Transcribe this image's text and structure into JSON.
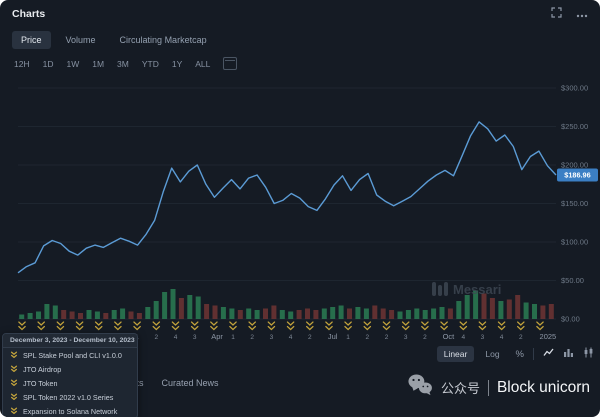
{
  "header": {
    "title": "Charts"
  },
  "toolbar": {
    "tabs": [
      {
        "label": "Price",
        "active": true
      },
      {
        "label": "Volume",
        "active": false
      },
      {
        "label": "Circulating Marketcap",
        "active": false
      }
    ],
    "ranges": [
      {
        "label": "12H"
      },
      {
        "label": "1D"
      },
      {
        "label": "1W"
      },
      {
        "label": "1M"
      },
      {
        "label": "3M"
      },
      {
        "label": "YTD"
      },
      {
        "label": "1Y"
      },
      {
        "label": "ALL"
      }
    ]
  },
  "chart_data": {
    "type": "line",
    "title": "Price",
    "series": [
      {
        "name": "Price",
        "values": [
          60,
          68,
          73,
          95,
          102,
          98,
          88,
          83,
          92,
          96,
          93,
          99,
          105,
          101,
          96,
          110,
          128,
          165,
          196,
          178,
          192,
          200,
          175,
          158,
          170,
          181,
          169,
          183,
          187,
          171,
          150,
          154,
          163,
          157,
          146,
          141,
          156,
          174,
          186,
          167,
          181,
          189,
          161,
          153,
          147,
          153,
          159,
          169,
          179,
          187,
          193,
          186,
          212,
          238,
          256,
          247,
          231,
          239,
          224,
          194,
          211,
          218,
          199,
          187
        ]
      }
    ],
    "volume": [
      0.15,
      0.2,
      0.25,
      0.5,
      0.45,
      0.3,
      0.25,
      0.2,
      0.3,
      0.25,
      0.2,
      0.3,
      0.35,
      0.25,
      0.2,
      0.4,
      0.6,
      0.9,
      1.0,
      0.7,
      0.8,
      0.75,
      0.5,
      0.45,
      0.4,
      0.35,
      0.3,
      0.35,
      0.3,
      0.35,
      0.45,
      0.3,
      0.25,
      0.3,
      0.35,
      0.3,
      0.35,
      0.4,
      0.45,
      0.35,
      0.4,
      0.35,
      0.45,
      0.35,
      0.3,
      0.25,
      0.3,
      0.35,
      0.3,
      0.35,
      0.4,
      0.35,
      0.6,
      0.8,
      0.95,
      0.85,
      0.7,
      0.6,
      0.65,
      0.8,
      0.55,
      0.5,
      0.45,
      0.5
    ],
    "y_ticks": [
      {
        "label": "$0.00",
        "value": 0
      },
      {
        "label": "$50.00",
        "value": 50
      },
      {
        "label": "$100.00",
        "value": 100
      },
      {
        "label": "$150.00",
        "value": 150
      },
      {
        "label": "$200.00",
        "value": 200
      },
      {
        "label": "$250.00",
        "value": 250
      },
      {
        "label": "$300.00",
        "value": 300
      }
    ],
    "ylim": [
      0,
      300
    ],
    "x_ticks": [
      {
        "label": "Apr",
        "f": 0.37
      },
      {
        "label": "Jul",
        "f": 0.585
      },
      {
        "label": "Oct",
        "f": 0.8
      },
      {
        "label": "2025",
        "f": 0.985
      }
    ],
    "current_price": {
      "label": "$186.96",
      "value": 186.96
    },
    "grid": true,
    "legend_position": "none",
    "line_color": "#5b9bd5",
    "volume_up_color": "#2a7d54",
    "volume_down_color": "#6e3434"
  },
  "milestones": {
    "color": "#c2a33c",
    "counts": [
      5,
      5,
      3,
      4,
      2,
      3,
      1,
      2,
      4,
      3,
      2,
      1,
      2,
      3,
      4,
      2,
      3,
      1,
      2,
      2,
      3,
      2,
      1,
      4,
      3,
      4,
      2,
      3
    ]
  },
  "tooltip": {
    "date_range": "December 3, 2023 - December 10, 2023",
    "items": [
      "SPL Stake Pool and CLI v1.0.0",
      "JTO Airdrop",
      "JTO Token",
      "SPL Token 2022 v1.0 Series",
      "Expansion to Solana Network"
    ]
  },
  "footer": {
    "scale": [
      {
        "label": "Linear",
        "active": true
      },
      {
        "label": "Log",
        "active": false
      }
    ],
    "percent_label": "%",
    "tabs": [
      {
        "label": "Events"
      },
      {
        "label": "Curated News"
      }
    ]
  },
  "watermark": {
    "brand": "Messari"
  },
  "overlay": {
    "wechat_label": "公众号",
    "wechat_name": "Block unicorn"
  }
}
